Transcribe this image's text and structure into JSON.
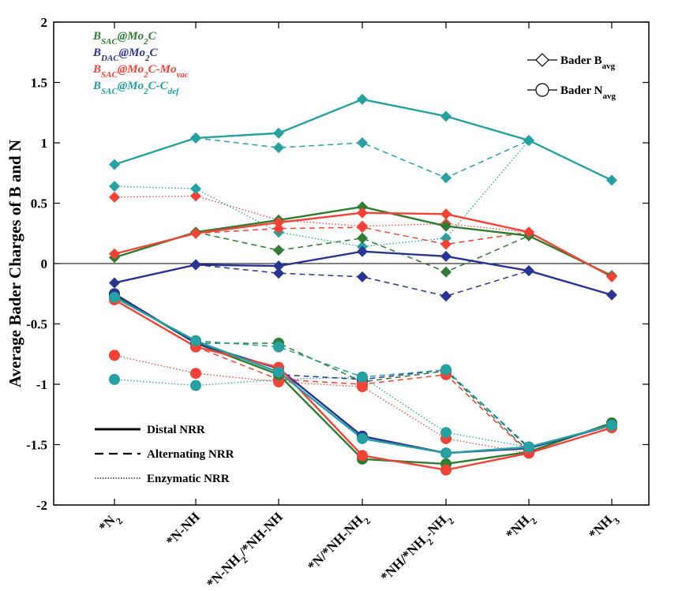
{
  "chart_data": {
    "type": "line",
    "ylabel": "Average Bader Charges of B and N",
    "xlabel": "",
    "ylim": [
      -2,
      2
    ],
    "yticks": [
      "-2",
      "-1.5",
      "-1",
      "-0.5",
      "0",
      "0.5",
      "1",
      "1.5",
      "2"
    ],
    "ytick_values": [
      -2,
      -1.5,
      -1,
      -0.5,
      0,
      0.5,
      1,
      1.5,
      2
    ],
    "categories": [
      {
        "text": "*N",
        "sub": "2",
        "rest": ""
      },
      {
        "text": "*N-NH",
        "sub": "",
        "rest": ""
      },
      {
        "text": "*N-NH",
        "sub": "2",
        "rest": "/*NH-NH"
      },
      {
        "text": "*N/*NH-NH",
        "sub": "2",
        "rest": ""
      },
      {
        "text": "*NH/*NH",
        "sub": "2",
        "rest": "-NH",
        "sub2": "2"
      },
      {
        "text": "*NH",
        "sub": "2",
        "rest": ""
      },
      {
        "text": "*NH",
        "sub": "3",
        "rest": ""
      }
    ],
    "catalysts": [
      {
        "key": "sac",
        "base": "B",
        "sub": "SAC",
        "mid": "@Mo",
        "sub2": "2",
        "tail": "C",
        "sub3": "",
        "color": "#2e7d32"
      },
      {
        "key": "dac",
        "base": "B",
        "sub": "DAC",
        "mid": "@Mo",
        "sub2": "2",
        "tail": "C",
        "sub3": "",
        "color": "#283593"
      },
      {
        "key": "movac",
        "base": "B",
        "sub": "SAC",
        "mid": "@Mo",
        "sub2": "2",
        "tail": "C-Mo",
        "sub3": "vac",
        "color": "#f44336"
      },
      {
        "key": "cdef",
        "base": "B",
        "sub": "SAC",
        "mid": "@Mo",
        "sub2": "2",
        "tail": "C-C",
        "sub3": "def",
        "color": "#26a0a0"
      }
    ],
    "marker_legend": [
      {
        "label": "Bader B",
        "sub": "avg",
        "marker": "diamond"
      },
      {
        "label": "Bader N",
        "sub": "avg",
        "marker": "circle"
      }
    ],
    "style_legend": [
      {
        "label": "Distal NRR",
        "style": "solid"
      },
      {
        "label": "Alternating NRR",
        "style": "dashed"
      },
      {
        "label": "Enzymatic NRR",
        "style": "dotted"
      }
    ],
    "series": [
      {
        "name": "B_SAC@Mo2C B distal",
        "catalyst": "sac",
        "marker": "diamond",
        "style": "solid",
        "x": [
          0,
          1,
          2,
          3,
          4,
          5,
          6
        ],
        "values": [
          0.05,
          0.26,
          0.36,
          0.47,
          0.31,
          0.23,
          -0.1
        ]
      },
      {
        "name": "B_SAC@Mo2C B alternating",
        "catalyst": "sac",
        "marker": "diamond",
        "style": "dashed",
        "x": [
          1,
          2,
          3,
          4,
          5
        ],
        "values": [
          0.26,
          0.11,
          0.21,
          -0.07,
          0.23
        ]
      },
      {
        "name": "B_SAC@Mo2C N distal",
        "catalyst": "sac",
        "marker": "circle",
        "style": "solid",
        "x": [
          0,
          1,
          2,
          3,
          4,
          5,
          6
        ],
        "values": [
          -0.26,
          -0.66,
          -0.92,
          -1.62,
          -1.66,
          -1.56,
          -1.32
        ]
      },
      {
        "name": "B_SAC@Mo2C N alternating",
        "catalyst": "sac",
        "marker": "circle",
        "style": "dashed",
        "x": [
          1,
          2,
          3,
          4,
          5
        ],
        "values": [
          -0.66,
          -0.66,
          -0.98,
          -0.89,
          -1.56
        ]
      },
      {
        "name": "B_DAC@Mo2C B distal",
        "catalyst": "dac",
        "marker": "diamond",
        "style": "solid",
        "x": [
          0,
          1,
          2,
          3,
          4,
          5,
          6
        ],
        "values": [
          -0.16,
          -0.01,
          -0.02,
          0.1,
          0.06,
          -0.06,
          -0.26
        ]
      },
      {
        "name": "B_DAC@Mo2C B alternating",
        "catalyst": "dac",
        "marker": "diamond",
        "style": "dashed",
        "x": [
          1,
          2,
          3,
          4,
          5
        ],
        "values": [
          -0.01,
          -0.08,
          -0.11,
          -0.27,
          -0.06
        ]
      },
      {
        "name": "B_DAC@Mo2C N distal",
        "catalyst": "dac",
        "marker": "circle",
        "style": "solid",
        "x": [
          0,
          1,
          2,
          3,
          4,
          5,
          6
        ],
        "values": [
          -0.25,
          -0.66,
          -0.87,
          -1.43,
          -1.57,
          -1.53,
          -1.34
        ]
      },
      {
        "name": "B_DAC@Mo2C N alternating",
        "catalyst": "dac",
        "marker": "circle",
        "style": "dashed",
        "x": [
          1,
          2,
          3,
          4,
          5
        ],
        "values": [
          -0.66,
          -0.92,
          -0.96,
          -0.88,
          -1.53
        ]
      },
      {
        "name": "B_SAC@Mo2C-Movac B distal",
        "catalyst": "movac",
        "marker": "diamond",
        "style": "solid",
        "x": [
          0,
          1,
          2,
          3,
          4,
          5,
          6
        ],
        "values": [
          0.08,
          0.25,
          0.34,
          0.42,
          0.41,
          0.26,
          -0.11
        ]
      },
      {
        "name": "B_SAC@Mo2C-Movac B alternating",
        "catalyst": "movac",
        "marker": "diamond",
        "style": "dashed",
        "x": [
          1,
          2,
          3,
          4,
          5
        ],
        "values": [
          0.25,
          0.29,
          0.3,
          0.16,
          0.26
        ]
      },
      {
        "name": "B_SAC@Mo2C-Movac B enzymatic",
        "catalyst": "movac",
        "marker": "diamond",
        "style": "dotted",
        "x": [
          0,
          1,
          2,
          3,
          4,
          5
        ],
        "values": [
          0.55,
          0.56,
          0.36,
          0.31,
          0.33,
          0.26
        ]
      },
      {
        "name": "B_SAC@Mo2C-Movac N distal",
        "catalyst": "movac",
        "marker": "circle",
        "style": "solid",
        "x": [
          0,
          1,
          2,
          3,
          4,
          5,
          6
        ],
        "values": [
          -0.3,
          -0.69,
          -0.86,
          -1.59,
          -1.71,
          -1.57,
          -1.36
        ]
      },
      {
        "name": "B_SAC@Mo2C-Movac N alternating",
        "catalyst": "movac",
        "marker": "circle",
        "style": "dashed",
        "x": [
          1,
          2,
          3,
          4,
          5
        ],
        "values": [
          -0.69,
          -0.96,
          -1.0,
          -0.92,
          -1.57
        ]
      },
      {
        "name": "B_SAC@Mo2C-Movac N enzymatic",
        "catalyst": "movac",
        "marker": "circle",
        "style": "dotted",
        "x": [
          0,
          1,
          2,
          3,
          4,
          5
        ],
        "values": [
          -0.76,
          -0.91,
          -0.98,
          -1.02,
          -1.45,
          -1.57
        ]
      },
      {
        "name": "B_SAC@Mo2C-Cdef B distal",
        "catalyst": "cdef",
        "marker": "diamond",
        "style": "solid",
        "x": [
          0,
          1,
          2,
          3,
          4,
          5,
          6
        ],
        "values": [
          0.82,
          1.04,
          1.08,
          1.36,
          1.22,
          1.02,
          0.69
        ]
      },
      {
        "name": "B_SAC@Mo2C-Cdef B alternating",
        "catalyst": "cdef",
        "marker": "diamond",
        "style": "dashed",
        "x": [
          1,
          2,
          3,
          4,
          5
        ],
        "values": [
          1.04,
          0.96,
          1.0,
          0.71,
          1.02
        ]
      },
      {
        "name": "B_SAC@Mo2C-Cdef B enzymatic",
        "catalyst": "cdef",
        "marker": "diamond",
        "style": "dotted",
        "x": [
          0,
          1,
          2,
          3,
          4,
          5
        ],
        "values": [
          0.64,
          0.62,
          0.26,
          0.14,
          0.21,
          1.02
        ]
      },
      {
        "name": "B_SAC@Mo2C-Cdef N distal",
        "catalyst": "cdef",
        "marker": "circle",
        "style": "solid",
        "x": [
          0,
          1,
          2,
          3,
          4,
          5,
          6
        ],
        "values": [
          -0.28,
          -0.64,
          -0.9,
          -1.45,
          -1.57,
          -1.52,
          -1.34
        ]
      },
      {
        "name": "B_SAC@Mo2C-Cdef N alternating",
        "catalyst": "cdef",
        "marker": "circle",
        "style": "dashed",
        "x": [
          1,
          2,
          3,
          4,
          5
        ],
        "values": [
          -0.64,
          -0.69,
          -0.94,
          -0.88,
          -1.52
        ]
      },
      {
        "name": "B_SAC@Mo2C-Cdef N enzymatic",
        "catalyst": "cdef",
        "marker": "circle",
        "style": "dotted",
        "x": [
          0,
          1,
          2,
          3,
          4,
          5
        ],
        "values": [
          -0.96,
          -1.01,
          -0.96,
          -0.94,
          -1.4,
          -1.52
        ]
      }
    ]
  }
}
